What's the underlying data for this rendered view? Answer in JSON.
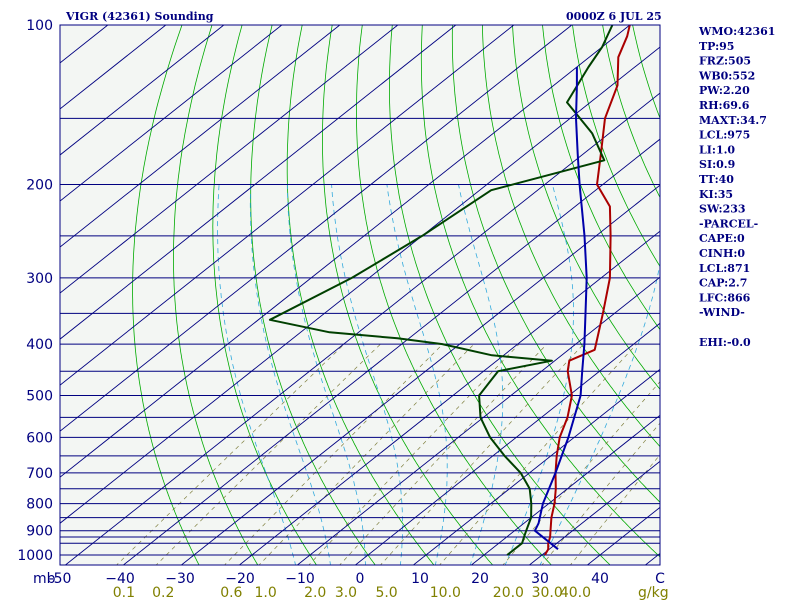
{
  "header": {
    "station": "VIGR (42361) Sounding",
    "time": "0000Z  6 JUL 25"
  },
  "colors": {
    "background": "#ffffff",
    "plot_bg": "#f3f6f3",
    "isobar": "#000080",
    "isotherm": "#000080",
    "dry_adiabat": "#00aa00",
    "moist_adiabat": "#33aadd",
    "mixing_ratio": "#808040",
    "temperature": "#aa0000",
    "dewpoint": "#004000",
    "parcel": "#0000aa",
    "text": "#000080",
    "mixing_label": "#808000"
  },
  "indices": [
    "WMO:42361",
    "TP:95",
    "FRZ:505",
    "WB0:552",
    "PW:2.20",
    "RH:69.6",
    "MAXT:34.7",
    "LCL:975",
    "LI:1.0",
    "SI:0.9",
    "TT:40",
    "KI:35",
    "SW:233",
    "-PARCEL-",
    "CAPE:0",
    "CINH:0",
    "LCL:871",
    "CAP:2.7",
    "LFC:866",
    "-WIND-",
    "",
    "EHI:-0.0"
  ],
  "chart_data": {
    "type": "skew-t",
    "y_axis": {
      "unit": "mb",
      "scale": "log",
      "range": [
        1000,
        100
      ],
      "tick_labels": [
        "100",
        "200",
        "300",
        "400",
        "500",
        "600",
        "700",
        "800",
        "900",
        "1000"
      ]
    },
    "x_axis": {
      "unit": "",
      "range": [
        -50,
        50
      ],
      "tick_values": [
        -50,
        -40,
        -30,
        -20,
        -10,
        0,
        10,
        20,
        30,
        40,
        50
      ],
      "tick_labels": [
        "-50",
        "−40",
        "−30",
        "−20",
        "−10",
        "0",
        "10",
        "20",
        "30",
        "40",
        "C"
      ]
    },
    "mixing_ratio_axis": {
      "unit": "g/kg",
      "values": [
        0.1,
        0.2,
        0.6,
        1.0,
        2.0,
        3.0,
        5.0,
        10.0,
        20.0,
        30.0,
        40.0
      ],
      "labels": [
        "0.1",
        "0.2",
        "0.6",
        "1.0",
        "2.0",
        "3.0",
        "5.0",
        "10.0",
        "20.0",
        "30.0",
        "40.0"
      ]
    },
    "isobars": [
      1000,
      950,
      925,
      900,
      850,
      800,
      750,
      700,
      650,
      600,
      550,
      500,
      450,
      400,
      350,
      300,
      250,
      200,
      150
    ],
    "series": [
      {
        "key": "temperature",
        "points": [
          [
            1000,
            30.5
          ],
          [
            975,
            29.8
          ],
          [
            950,
            28.5
          ],
          [
            925,
            27.5
          ],
          [
            900,
            26.2
          ],
          [
            850,
            23.5
          ],
          [
            800,
            21
          ],
          [
            750,
            18
          ],
          [
            700,
            14.5
          ],
          [
            650,
            11
          ],
          [
            600,
            7.5
          ],
          [
            550,
            4.5
          ],
          [
            500,
            0.5
          ],
          [
            450,
            -5.5
          ],
          [
            430,
            -7.5
          ],
          [
            410,
            -5.5
          ],
          [
            400,
            -6.5
          ],
          [
            350,
            -12
          ],
          [
            300,
            -18.5
          ],
          [
            250,
            -27.5
          ],
          [
            220,
            -34
          ],
          [
            200,
            -41
          ],
          [
            175,
            -47
          ],
          [
            150,
            -54
          ],
          [
            130,
            -59
          ],
          [
            115,
            -65
          ],
          [
            105,
            -68
          ],
          [
            100,
            -70
          ]
        ]
      },
      {
        "key": "dewpoint",
        "points": [
          [
            1000,
            24
          ],
          [
            975,
            24
          ],
          [
            950,
            24
          ],
          [
            925,
            23
          ],
          [
            900,
            22
          ],
          [
            850,
            20
          ],
          [
            800,
            17
          ],
          [
            750,
            13.5
          ],
          [
            700,
            8.5
          ],
          [
            650,
            2
          ],
          [
            600,
            -4.5
          ],
          [
            550,
            -10.5
          ],
          [
            500,
            -15.5
          ],
          [
            450,
            -17.5
          ],
          [
            430,
            -10.5
          ],
          [
            420,
            -22
          ],
          [
            400,
            -33
          ],
          [
            390,
            -42
          ],
          [
            380,
            -55
          ],
          [
            360,
            -68
          ],
          [
            300,
            -63
          ],
          [
            250,
            -60
          ],
          [
            205,
            -58
          ],
          [
            180,
            -45
          ],
          [
            160,
            -53
          ],
          [
            140,
            -64
          ],
          [
            120,
            -68
          ],
          [
            110,
            -70
          ],
          [
            100,
            -73
          ]
        ]
      },
      {
        "key": "parcel",
        "points": [
          [
            975,
            31.5
          ],
          [
            900,
            23.5
          ],
          [
            871,
            22.5
          ],
          [
            850,
            21.5
          ],
          [
            800,
            19
          ],
          [
            700,
            14.5
          ],
          [
            600,
            9
          ],
          [
            500,
            2
          ],
          [
            450,
            -3
          ],
          [
            400,
            -8.5
          ],
          [
            350,
            -15
          ],
          [
            300,
            -22.5
          ],
          [
            250,
            -32
          ],
          [
            200,
            -44
          ],
          [
            175,
            -51
          ],
          [
            150,
            -59
          ],
          [
            130,
            -66
          ],
          [
            120,
            -70
          ]
        ]
      }
    ]
  }
}
